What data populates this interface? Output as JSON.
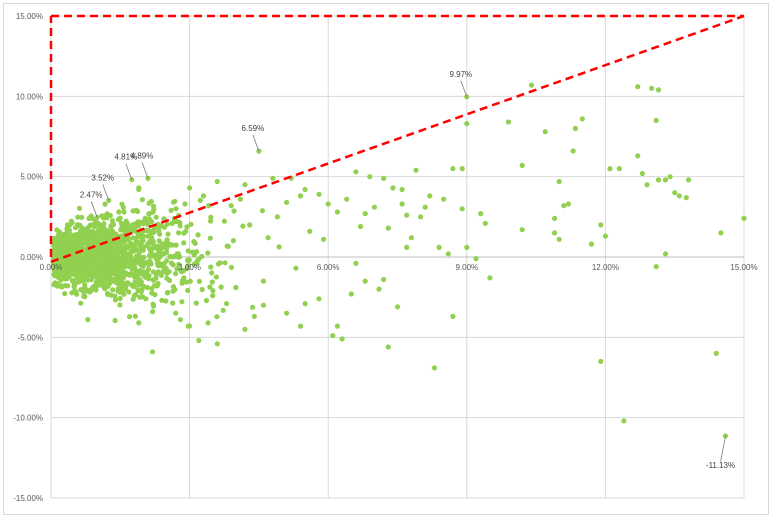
{
  "chart_data": {
    "type": "scatter",
    "title": "",
    "xlabel": "",
    "ylabel": "",
    "xlim": [
      0,
      15
    ],
    "ylim": [
      -15,
      15
    ],
    "x_ticks": [
      {
        "v": 0,
        "label": "0.00%"
      },
      {
        "v": 3,
        "label": "3.00%"
      },
      {
        "v": 6,
        "label": "6.00%"
      },
      {
        "v": 9,
        "label": "9.00%"
      },
      {
        "v": 12,
        "label": "12.00%"
      },
      {
        "v": 15,
        "label": "15.00%"
      }
    ],
    "y_ticks": [
      {
        "v": 15,
        "label": "15.00%"
      },
      {
        "v": 10,
        "label": "10.00%"
      },
      {
        "v": 5,
        "label": "5.00%"
      },
      {
        "v": 0,
        "label": "0.00%"
      },
      {
        "v": -5,
        "label": "-5.00%"
      },
      {
        "v": -10,
        "label": "-10.00%"
      },
      {
        "v": -15,
        "label": "-15.00%"
      }
    ],
    "grid": true,
    "legend": "none",
    "point_color": "#92d050",
    "reference_line_color": "#ff0000",
    "reference_lines": [
      {
        "style": "dashed",
        "points": [
          [
            0,
            -0.3
          ],
          [
            15,
            15
          ]
        ]
      },
      {
        "style": "dashed",
        "points": [
          [
            0,
            0
          ],
          [
            0,
            15
          ]
        ]
      },
      {
        "style": "dashed",
        "points": [
          [
            0,
            15
          ],
          [
            15,
            15
          ]
        ]
      }
    ],
    "annotations": [
      {
        "text": "2.47%",
        "x": 1.0,
        "y": 2.47
      },
      {
        "text": "3.52%",
        "x": 1.25,
        "y": 3.52
      },
      {
        "text": "4.81%",
        "x": 1.75,
        "y": 4.81
      },
      {
        "text": "4.89%",
        "x": 2.1,
        "y": 4.89
      },
      {
        "text": "6.59%",
        "x": 4.5,
        "y": 6.59
      },
      {
        "text": "9.97%",
        "x": 9.0,
        "y": 9.97
      },
      {
        "text": "-11.13%",
        "x": 14.6,
        "y": -11.13
      }
    ],
    "series": [
      {
        "points": [
          [
            1.0,
            2.47
          ],
          [
            1.25,
            3.52
          ],
          [
            1.75,
            4.81
          ],
          [
            2.1,
            4.89
          ],
          [
            4.5,
            6.59
          ],
          [
            9.0,
            9.97
          ],
          [
            14.6,
            -11.13
          ],
          [
            1.9,
            4.3
          ],
          [
            1.9,
            4.2
          ],
          [
            3.0,
            4.3
          ],
          [
            3.6,
            4.7
          ],
          [
            4.2,
            4.5
          ],
          [
            4.8,
            4.9
          ],
          [
            5.2,
            4.9
          ],
          [
            5.5,
            4.2
          ],
          [
            2.9,
            3.3
          ],
          [
            3.3,
            3.8
          ],
          [
            2.6,
            2.9
          ],
          [
            3.9,
            3.2
          ],
          [
            4.1,
            3.6
          ],
          [
            5.1,
            3.4
          ],
          [
            5.4,
            3.8
          ],
          [
            5.8,
            3.9
          ],
          [
            6.0,
            3.3
          ],
          [
            6.2,
            2.8
          ],
          [
            6.6,
            5.3
          ],
          [
            6.9,
            5.0
          ],
          [
            7.2,
            4.9
          ],
          [
            7.4,
            4.3
          ],
          [
            7.6,
            4.2
          ],
          [
            7.0,
            3.1
          ],
          [
            7.7,
            2.6
          ],
          [
            7.9,
            5.4
          ],
          [
            8.2,
            3.8
          ],
          [
            8.5,
            3.6
          ],
          [
            8.7,
            5.5
          ],
          [
            8.9,
            5.5
          ],
          [
            8.9,
            3.0
          ],
          [
            9.0,
            8.3
          ],
          [
            9.3,
            2.7
          ],
          [
            9.4,
            2.1
          ],
          [
            9.9,
            8.4
          ],
          [
            10.2,
            5.7
          ],
          [
            10.4,
            10.7
          ],
          [
            10.7,
            7.8
          ],
          [
            10.9,
            2.4
          ],
          [
            11.2,
            3.3
          ],
          [
            11.3,
            6.6
          ],
          [
            11.35,
            8.0
          ],
          [
            11.5,
            8.6
          ],
          [
            11.9,
            2.0
          ],
          [
            12.1,
            5.5
          ],
          [
            12.3,
            5.5
          ],
          [
            12.7,
            10.6
          ],
          [
            13.0,
            10.5
          ],
          [
            13.15,
            10.4
          ],
          [
            12.7,
            6.3
          ],
          [
            12.8,
            5.2
          ],
          [
            12.9,
            4.5
          ],
          [
            13.1,
            8.5
          ],
          [
            13.15,
            4.8
          ],
          [
            13.3,
            4.8
          ],
          [
            13.4,
            5.0
          ],
          [
            13.5,
            4.0
          ],
          [
            13.6,
            3.8
          ],
          [
            13.75,
            3.7
          ],
          [
            13.8,
            4.8
          ],
          [
            15.0,
            2.4
          ],
          [
            14.5,
            1.5
          ],
          [
            14.4,
            -6.0
          ],
          [
            11.9,
            -6.5
          ],
          [
            12.4,
            -10.2
          ],
          [
            13.1,
            -0.6
          ],
          [
            13.3,
            0.2
          ],
          [
            12.0,
            1.3
          ],
          [
            11.7,
            0.8
          ],
          [
            11.0,
            4.7
          ],
          [
            11.1,
            3.2
          ],
          [
            10.9,
            1.5
          ],
          [
            11.0,
            1.1
          ],
          [
            10.2,
            1.7
          ],
          [
            9.5,
            -1.3
          ],
          [
            9.0,
            0.6
          ],
          [
            9.2,
            -0.1
          ],
          [
            8.7,
            -3.7
          ],
          [
            8.3,
            -6.9
          ],
          [
            8.4,
            0.6
          ],
          [
            8.6,
            0.2
          ],
          [
            7.7,
            0.6
          ],
          [
            7.3,
            -5.6
          ],
          [
            7.1,
            -2.0
          ],
          [
            7.2,
            -1.4
          ],
          [
            6.6,
            -0.4
          ],
          [
            6.5,
            -2.3
          ],
          [
            6.2,
            -4.3
          ],
          [
            6.3,
            -5.1
          ],
          [
            6.1,
            -4.9
          ],
          [
            2.2,
            -5.9
          ],
          [
            3.2,
            -5.2
          ],
          [
            3.6,
            -5.4
          ],
          [
            3.4,
            -4.1
          ],
          [
            2.8,
            -3.9
          ],
          [
            4.2,
            -4.5
          ],
          [
            4.4,
            -3.7
          ],
          [
            5.4,
            -4.3
          ],
          [
            5.1,
            -3.5
          ],
          [
            5.5,
            -2.9
          ],
          [
            5.8,
            -2.6
          ],
          [
            2.2,
            -3.4
          ],
          [
            3.8,
            -2.9
          ],
          [
            1.9,
            -4.1
          ],
          [
            2.7,
            -3.5
          ],
          [
            4.6,
            -3.0
          ],
          [
            7.5,
            -3.1
          ],
          [
            6.8,
            -1.5
          ],
          [
            7.8,
            1.2
          ],
          [
            8.0,
            2.5
          ],
          [
            8.1,
            3.1
          ],
          [
            7.3,
            1.8
          ],
          [
            7.6,
            3.3
          ],
          [
            6.8,
            2.7
          ],
          [
            6.4,
            3.6
          ],
          [
            6.7,
            1.9
          ],
          [
            5.9,
            1.1
          ],
          [
            5.6,
            1.6
          ],
          [
            4.9,
            2.5
          ],
          [
            4.3,
            2.0
          ],
          [
            4.7,
            1.2
          ],
          [
            5.3,
            -0.7
          ],
          [
            4.6,
            -1.5
          ],
          [
            4.0,
            -1.9
          ],
          [
            3.5,
            -2.4
          ],
          [
            2.4,
            -2.7
          ],
          [
            1.5,
            -2.2
          ],
          [
            0.9,
            -1.9
          ],
          [
            0.5,
            -1.6
          ],
          [
            0.6,
            -1.3
          ]
        ]
      }
    ]
  }
}
